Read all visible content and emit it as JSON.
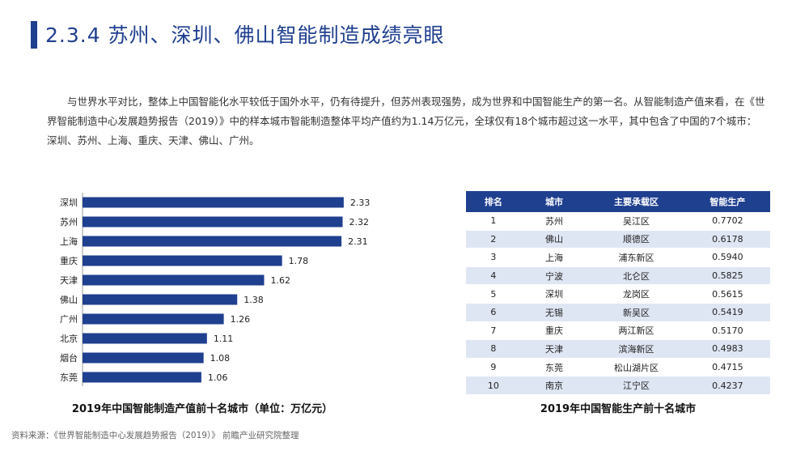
{
  "header": {
    "title": "2.3.4 苏州、深圳、佛山智能制造成绩亮眼"
  },
  "paragraph": "与世界水平对比，整体上中国智能化水平较低于国外水平，仍有待提升，但苏州表现强势，成为世界和中国智能生产的第一名。从智能制造产值来看，在《世界智能制造中心发展趋势报告（2019）》中的样本城市智能制造整体平均产值约为1.14万亿元，全球仅有18个城市超过这一水平，其中包含了中国的7个城市：深圳、苏州、上海、重庆、天津、佛山、广州。",
  "chart_data": [
    {
      "type": "bar",
      "orientation": "horizontal",
      "title": "2019年中国智能制造产值前十名城市（单位：万亿元）",
      "categories": [
        "深圳",
        "苏州",
        "上海",
        "重庆",
        "天津",
        "佛山",
        "广州",
        "北京",
        "烟台",
        "东莞"
      ],
      "values": [
        2.33,
        2.32,
        2.31,
        1.78,
        1.62,
        1.38,
        1.26,
        1.11,
        1.08,
        1.06
      ],
      "value_labels": [
        "2.33",
        "2.32",
        "2.31",
        "1.78",
        "1.62",
        "1.38",
        "1.26",
        "1.11",
        "1.08",
        "1.06"
      ],
      "xlim": [
        0,
        2.8
      ],
      "grid": false,
      "legend": "none",
      "bar_color": "#1f3f8f"
    },
    {
      "type": "table",
      "title": "2019年中国智能生产前十名城市",
      "columns": [
        "排名",
        "城市",
        "主要承载区",
        "智能生产"
      ],
      "rows": [
        [
          "1",
          "苏州",
          "吴江区",
          "0.7702"
        ],
        [
          "2",
          "佛山",
          "顺德区",
          "0.6178"
        ],
        [
          "3",
          "上海",
          "浦东新区",
          "0.5940"
        ],
        [
          "4",
          "宁波",
          "北仑区",
          "0.5825"
        ],
        [
          "5",
          "深圳",
          "龙岗区",
          "0.5615"
        ],
        [
          "6",
          "无锡",
          "新吴区",
          "0.5419"
        ],
        [
          "7",
          "重庆",
          "两江新区",
          "0.5170"
        ],
        [
          "8",
          "天津",
          "滨海新区",
          "0.4983"
        ],
        [
          "9",
          "东莞",
          "松山湖片区",
          "0.4715"
        ],
        [
          "10",
          "南京",
          "江宁区",
          "0.4237"
        ]
      ]
    }
  ],
  "source": "资料来源：《世界智能制造中心发展趋势报告（2019）》 前瞻产业研究院整理"
}
